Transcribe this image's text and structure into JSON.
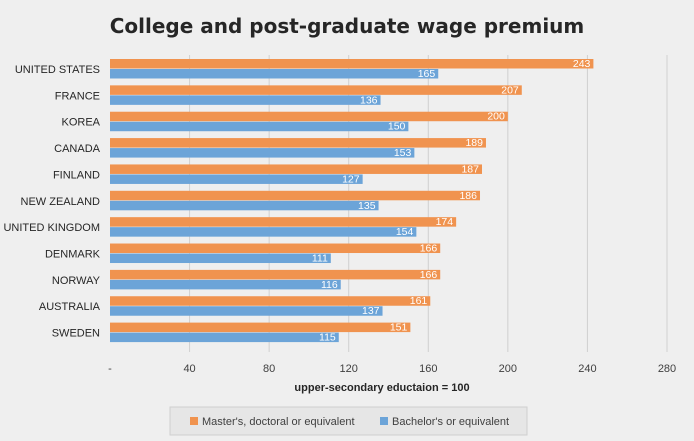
{
  "chart_data": {
    "type": "bar",
    "orientation": "horizontal",
    "title": "College and post-graduate wage premium",
    "xlabel": "upper-secondary eductaion  = 100",
    "ylabel": "",
    "categories": [
      "UNITED STATES",
      "FRANCE",
      "KOREA",
      "CANADA",
      "FINLAND",
      "NEW ZEALAND",
      "UNITED KINGDOM",
      "DENMARK",
      "NORWAY",
      "AUSTRALIA",
      "SWEDEN"
    ],
    "series": [
      {
        "name": "Master's, doctoral or equivalent",
        "color": "#f0934f",
        "values": [
          243,
          207,
          200,
          189,
          187,
          186,
          174,
          166,
          166,
          161,
          151
        ]
      },
      {
        "name": "Bachelor's or equivalent",
        "color": "#6ca4d8",
        "values": [
          165,
          136,
          150,
          153,
          127,
          135,
          154,
          111,
          116,
          137,
          115
        ]
      }
    ],
    "xlim": [
      0,
      280
    ],
    "xticks": [
      0,
      40,
      80,
      120,
      160,
      200,
      240,
      280
    ],
    "xtick_labels": [
      "-",
      "40",
      "80",
      "120",
      "160",
      "200",
      "240",
      "280"
    ],
    "grid": true,
    "legend_position": "bottom",
    "data_labels": true
  }
}
